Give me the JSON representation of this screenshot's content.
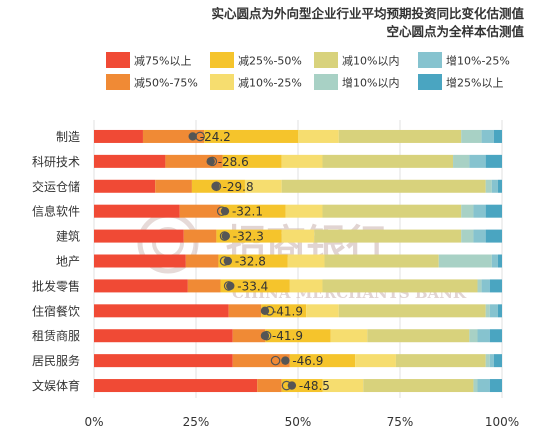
{
  "chart_data": {
    "type": "bar",
    "stacked": true,
    "orientation": "horizontal",
    "title_lines": [
      "实心圆点为外向型企业行业平均预期投资同比变化估测值",
      "空心圆点为全样本估测值"
    ],
    "categories": [
      "制造",
      "科研技术",
      "交运仓储",
      "信息软件",
      "建筑",
      "地产",
      "批发零售",
      "住宿餐饮",
      "租赁商服",
      "居民服务",
      "文娱体育"
    ],
    "series": [
      {
        "name": "减75%以上",
        "color": "#f04a35",
        "values": [
          12,
          17.5,
          15,
          21,
          22,
          22.5,
          23,
          33,
          34,
          34,
          40
        ]
      },
      {
        "name": "减50%-75%",
        "color": "#f08a35",
        "values": [
          15,
          14,
          9,
          10,
          8,
          8,
          8,
          8,
          8,
          14,
          6
        ]
      },
      {
        "name": "减25%-50%",
        "color": "#f5c42c",
        "values": [
          23,
          14.5,
          13,
          16,
          16,
          17,
          17,
          11,
          16,
          16,
          10
        ]
      },
      {
        "name": "减10%-25%",
        "color": "#f6dd6f",
        "values": [
          10,
          10,
          9,
          9,
          8,
          9,
          8,
          8,
          9,
          10,
          10
        ]
      },
      {
        "name": "减10%以内",
        "color": "#d8d27c",
        "values": [
          30,
          32,
          50,
          34,
          36,
          28,
          38,
          36,
          25,
          22,
          27
        ]
      },
      {
        "name": "增10%以内",
        "color": "#a8d1c5",
        "values": [
          5,
          4,
          1.5,
          3,
          3,
          13,
          1,
          1,
          2,
          1,
          1
        ]
      },
      {
        "name": "增10%-25%",
        "color": "#86c3cf",
        "values": [
          3,
          4,
          1.5,
          3,
          3,
          1.5,
          2,
          2,
          3,
          1,
          3
        ]
      },
      {
        "name": "增25%以上",
        "color": "#4aa5c1",
        "values": [
          2,
          4,
          1,
          4,
          4,
          1,
          3,
          1,
          3,
          2,
          3
        ]
      }
    ],
    "filled_dot_values": [
      -24.2,
      -28.6,
      -29.8,
      -32.1,
      -32.3,
      -32.8,
      -33.4,
      -41.9,
      -41.9,
      -46.9,
      -48.5
    ],
    "hollow_dot_values": [
      -26.0,
      -29.0,
      -30.0,
      -31.3,
      -32.0,
      -32.0,
      -33.0,
      -43.0,
      -42.3,
      -44.5,
      -47.2
    ],
    "dot_labels": [
      "-24.2",
      "-28.6",
      "-29.8",
      "-32.1",
      "-32.3",
      "-32.8",
      "-33.4",
      "-41.9",
      "-41.9",
      "-46.9",
      "-48.5"
    ],
    "dot_color": "#555555",
    "xlim": [
      0,
      100
    ],
    "x_ticks": [
      "0%",
      "25%",
      "50%",
      "75%",
      "100%"
    ],
    "grid": true,
    "legend_position": "top"
  },
  "watermark": {
    "cn": "招商银行",
    "en": "CHINA MERCHANTS BANK",
    "color": "#ceb9b7"
  }
}
